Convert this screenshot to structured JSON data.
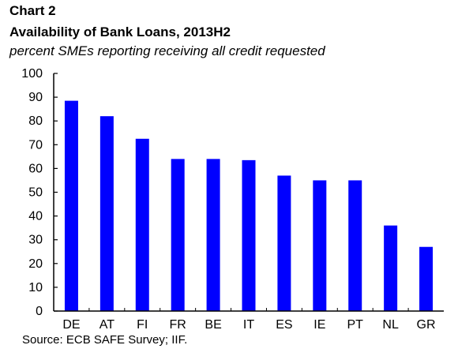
{
  "header": {
    "label": "Chart 2",
    "title": "Availability of Bank Loans, 2013H2",
    "subtitle": "percent SMEs reporting receiving all credit requested"
  },
  "footer": {
    "source": "Source: ECB SAFE Survey; IIF."
  },
  "colors": {
    "bar": "#0000ff",
    "axis": "#000000"
  },
  "chart_data": {
    "type": "bar",
    "title": "Availability of Bank Loans, 2013H2",
    "subtitle": "percent SMEs reporting receiving all credit requested",
    "categories": [
      "DE",
      "AT",
      "FI",
      "FR",
      "BE",
      "IT",
      "ES",
      "IE",
      "PT",
      "NL",
      "GR"
    ],
    "values": [
      88.5,
      82,
      72.5,
      64,
      64,
      63.5,
      57,
      55,
      55,
      36,
      27
    ],
    "ylim": [
      0,
      100
    ],
    "yticks": [
      0,
      10,
      20,
      30,
      40,
      50,
      60,
      70,
      80,
      90,
      100
    ],
    "grid": false,
    "legend": "none"
  }
}
